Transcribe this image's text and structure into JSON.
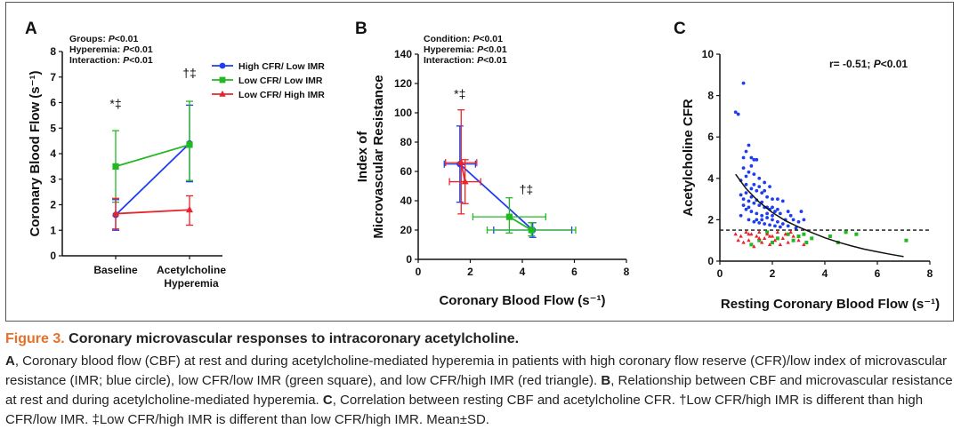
{
  "chart_data": [
    {
      "panel": "A",
      "type": "line",
      "ylabel": "Coronary Blood Flow (s⁻¹)",
      "ylim": [
        0,
        8
      ],
      "yticks": [
        0,
        1,
        2,
        3,
        4,
        5,
        6,
        7,
        8
      ],
      "categories": [
        "Baseline",
        "Acetylcholine"
      ],
      "category_sublabel": "Hyperemia",
      "stats": [
        {
          "label": "Groups: ",
          "p": "P",
          "rest": "<0.01"
        },
        {
          "label": "Hyperemia: ",
          "p": "P",
          "rest": "<0.01"
        },
        {
          "label": "Interaction: ",
          "p": "P",
          "rest": "<0.01"
        }
      ],
      "series": [
        {
          "name": "High CFR/ Low IMR",
          "color": "#1e3cf0",
          "marker": "circle",
          "values": [
            1.6,
            4.4
          ],
          "err_low": [
            0.6,
            1.5
          ],
          "err_high": [
            0.6,
            1.5
          ]
        },
        {
          "name": "Low CFR/ Low IMR",
          "color": "#22b822",
          "marker": "square",
          "values": [
            3.5,
            4.35
          ],
          "err_low": [
            1.4,
            1.4
          ],
          "err_high": [
            1.4,
            1.7
          ]
        },
        {
          "name": "Low CFR/ High IMR",
          "color": "#e8242a",
          "marker": "triangle",
          "values": [
            1.65,
            1.8
          ],
          "err_low": [
            0.6,
            0.6
          ],
          "err_high": [
            0.6,
            0.55
          ]
        }
      ],
      "annotations": [
        {
          "text": "*‡",
          "x": 0,
          "y": 5.8
        },
        {
          "text": "†‡",
          "x": 1,
          "y": 7.0
        }
      ]
    },
    {
      "panel": "B",
      "type": "scatter",
      "xlabel": "Coronary Blood Flow (s⁻¹)",
      "ylabel": "Index of Microvascular Resistance",
      "xlim": [
        0,
        8
      ],
      "ylim": [
        0,
        140
      ],
      "xticks": [
        0,
        2,
        4,
        6,
        8
      ],
      "yticks": [
        0,
        20,
        40,
        60,
        80,
        100,
        120,
        140
      ],
      "stats": [
        {
          "label": "Condition: ",
          "p": "P",
          "rest": "<0.01"
        },
        {
          "label": "Hyperemia: ",
          "p": "P",
          "rest": "<0.01"
        },
        {
          "label": "Interaction: ",
          "p": "P",
          "rest": "<0.01"
        }
      ],
      "series": [
        {
          "name": "High CFR/ Low IMR",
          "color": "#1e3cf0",
          "marker": "circle",
          "points": [
            {
              "x": 1.6,
              "y": 65,
              "xerr": 0.6,
              "yerr_low": 26,
              "yerr_high": 26
            },
            {
              "x": 4.4,
              "y": 20,
              "xerr": 1.5,
              "yerr_low": 5,
              "yerr_high": 5
            }
          ]
        },
        {
          "name": "Low CFR/ Low IMR",
          "color": "#22b822",
          "marker": "square",
          "points": [
            {
              "x": 3.5,
              "y": 29,
              "xerr": 1.4,
              "yerr_low": 11,
              "yerr_high": 13
            },
            {
              "x": 4.35,
              "y": 20,
              "xerr": 1.7,
              "yerr_low": 4,
              "yerr_high": 5
            }
          ]
        },
        {
          "name": "Low CFR/ High IMR",
          "color": "#e8242a",
          "marker": "triangle",
          "points": [
            {
              "x": 1.65,
              "y": 66,
              "xerr": 0.6,
              "yerr_low": 35,
              "yerr_high": 36
            },
            {
              "x": 1.8,
              "y": 53,
              "xerr": 0.6,
              "yerr_low": 15,
              "yerr_high": 15
            }
          ]
        }
      ],
      "annotations": [
        {
          "text": "*‡",
          "x": 1.6,
          "y": 110
        },
        {
          "text": "†‡",
          "x": 4.15,
          "y": 45
        }
      ]
    },
    {
      "panel": "C",
      "type": "scatter",
      "xlabel": "Resting Coronary Blood Flow (s⁻¹)",
      "ylabel": "Acetylcholine CFR",
      "xlim": [
        0,
        8
      ],
      "ylim": [
        0,
        10
      ],
      "xticks": [
        0,
        2,
        4,
        6,
        8
      ],
      "yticks": [
        0,
        2,
        4,
        6,
        8,
        10
      ],
      "stat": {
        "prefix": "r= -0.51; ",
        "p": "P",
        "rest": "<0.01"
      },
      "reference_line_y": 1.5,
      "fit_curve": [
        [
          0.6,
          4.2
        ],
        [
          1.0,
          3.5
        ],
        [
          1.5,
          2.85
        ],
        [
          2.0,
          2.35
        ],
        [
          2.5,
          1.95
        ],
        [
          3.0,
          1.65
        ],
        [
          3.5,
          1.38
        ],
        [
          4.0,
          1.13
        ],
        [
          4.5,
          0.92
        ],
        [
          5.0,
          0.74
        ],
        [
          5.5,
          0.58
        ],
        [
          6.0,
          0.45
        ],
        [
          6.5,
          0.33
        ],
        [
          7.0,
          0.22
        ]
      ],
      "series": [
        {
          "name": "High CFR/ Low IMR",
          "color": "#1e3cf0",
          "marker": "circle",
          "points": [
            [
              0.6,
              7.2
            ],
            [
              0.7,
              7.1
            ],
            [
              0.9,
              8.6
            ],
            [
              1.0,
              5.3
            ],
            [
              1.1,
              5.6
            ],
            [
              1.2,
              5.0
            ],
            [
              0.9,
              5.0
            ],
            [
              1.3,
              4.9
            ],
            [
              1.4,
              4.9
            ],
            [
              0.9,
              4.5
            ],
            [
              1.1,
              4.3
            ],
            [
              1.3,
              4.2
            ],
            [
              1.5,
              4.0
            ],
            [
              1.7,
              3.8
            ],
            [
              1.9,
              3.6
            ],
            [
              0.8,
              3.9
            ],
            [
              1.0,
              3.7
            ],
            [
              1.2,
              3.5
            ],
            [
              1.4,
              3.4
            ],
            [
              1.6,
              3.3
            ],
            [
              1.8,
              3.1
            ],
            [
              2.0,
              3.0
            ],
            [
              2.2,
              3.0
            ],
            [
              2.4,
              2.9
            ],
            [
              0.9,
              3.0
            ],
            [
              1.1,
              2.9
            ],
            [
              1.3,
              2.8
            ],
            [
              1.5,
              2.7
            ],
            [
              1.7,
              2.6
            ],
            [
              1.9,
              2.5
            ],
            [
              2.1,
              2.4
            ],
            [
              2.3,
              2.3
            ],
            [
              2.6,
              2.4
            ],
            [
              1.0,
              2.5
            ],
            [
              1.2,
              2.4
            ],
            [
              1.4,
              2.3
            ],
            [
              1.6,
              2.2
            ],
            [
              1.8,
              2.1
            ],
            [
              2.0,
              2.0
            ],
            [
              2.2,
              1.9
            ],
            [
              2.5,
              2.0
            ],
            [
              2.8,
              2.0
            ],
            [
              3.1,
              2.4
            ],
            [
              3.2,
              2.0
            ],
            [
              0.8,
              2.2
            ],
            [
              1.1,
              2.0
            ],
            [
              1.3,
              1.9
            ],
            [
              1.5,
              1.85
            ],
            [
              1.7,
              1.8
            ],
            [
              1.9,
              1.75
            ],
            [
              2.1,
              1.7
            ],
            [
              2.3,
              1.65
            ],
            [
              2.6,
              1.7
            ],
            [
              2.9,
              1.6
            ],
            [
              3.0,
              1.9
            ],
            [
              1.0,
              3.3
            ],
            [
              1.2,
              3.1
            ],
            [
              1.4,
              2.95
            ],
            [
              1.6,
              2.85
            ],
            [
              1.8,
              2.6
            ],
            [
              2.0,
              2.6
            ],
            [
              2.2,
              2.5
            ],
            [
              0.9,
              2.7
            ],
            [
              1.1,
              2.6
            ],
            [
              1.5,
              3.6
            ],
            [
              1.7,
              3.4
            ],
            [
              1.3,
              3.7
            ],
            [
              1.0,
              4.1
            ],
            [
              1.2,
              4.6
            ],
            [
              0.8,
              3.2
            ],
            [
              1.6,
              2.0
            ],
            [
              1.4,
              2.0
            ],
            [
              2.4,
              1.8
            ],
            [
              2.7,
              2.2
            ],
            [
              1.8,
              2.3
            ],
            [
              2.0,
              2.2
            ]
          ]
        },
        {
          "name": "Low CFR/ Low IMR",
          "color": "#22b822",
          "marker": "square",
          "points": [
            [
              1.2,
              0.8
            ],
            [
              1.5,
              1.0
            ],
            [
              2.2,
              1.1
            ],
            [
              2.6,
              1.3
            ],
            [
              2.8,
              1.0
            ],
            [
              3.0,
              1.2
            ],
            [
              3.2,
              1.3
            ],
            [
              3.5,
              1.1
            ],
            [
              4.2,
              1.2
            ],
            [
              4.5,
              0.9
            ],
            [
              4.8,
              1.4
            ],
            [
              5.2,
              1.3
            ],
            [
              7.1,
              1.0
            ],
            [
              2.0,
              0.9
            ],
            [
              1.8,
              1.4
            ],
            [
              3.3,
              0.9
            ]
          ]
        },
        {
          "name": "Low CFR/ High IMR",
          "color": "#e8242a",
          "marker": "triangle",
          "points": [
            [
              0.6,
              1.3
            ],
            [
              0.8,
              1.2
            ],
            [
              0.9,
              0.9
            ],
            [
              1.0,
              1.4
            ],
            [
              1.1,
              1.0
            ],
            [
              1.2,
              1.3
            ],
            [
              1.3,
              0.7
            ],
            [
              1.4,
              1.2
            ],
            [
              1.5,
              1.4
            ],
            [
              1.6,
              0.9
            ],
            [
              1.7,
              1.1
            ],
            [
              1.8,
              1.3
            ],
            [
              1.9,
              0.8
            ],
            [
              2.0,
              1.2
            ],
            [
              2.1,
              1.0
            ],
            [
              2.2,
              1.4
            ],
            [
              2.3,
              0.8
            ],
            [
              2.4,
              1.1
            ],
            [
              2.5,
              1.3
            ],
            [
              2.6,
              0.9
            ],
            [
              2.8,
              1.2
            ],
            [
              3.0,
              1.0
            ],
            [
              3.2,
              0.8
            ],
            [
              0.7,
              1.0
            ],
            [
              1.1,
              1.3
            ],
            [
              1.5,
              1.1
            ],
            [
              1.9,
              1.2
            ],
            [
              2.7,
              1.4
            ]
          ]
        }
      ]
    }
  ],
  "panel_labels": [
    "A",
    "B",
    "C"
  ],
  "caption": {
    "fig_label": "Figure 3.",
    "title": " Coronary microvascular responses to intracoronary acetylcholine.",
    "body": [
      {
        "bold": "A",
        "text": ", Coronary blood flow (CBF) at rest and during acetylcholine-mediated hyperemia in patients with high coronary flow reserve (CFR)/low index of microvascular resistance (IMR; blue circle), low CFR/low IMR (green square), and low CFR/high IMR (red triangle). "
      },
      {
        "bold": "B",
        "text": ", Relationship between CBF and microvascular resistance at rest and during acetylcholine-mediated hyperemia. "
      },
      {
        "bold": "C",
        "text": ", Correlation between resting CBF and acetylcholine CFR. †Low CFR/high IMR is different than high CFR/low IMR. ‡Low CFR/high IMR is different than low CFR/high IMR. Mean±SD."
      }
    ]
  }
}
